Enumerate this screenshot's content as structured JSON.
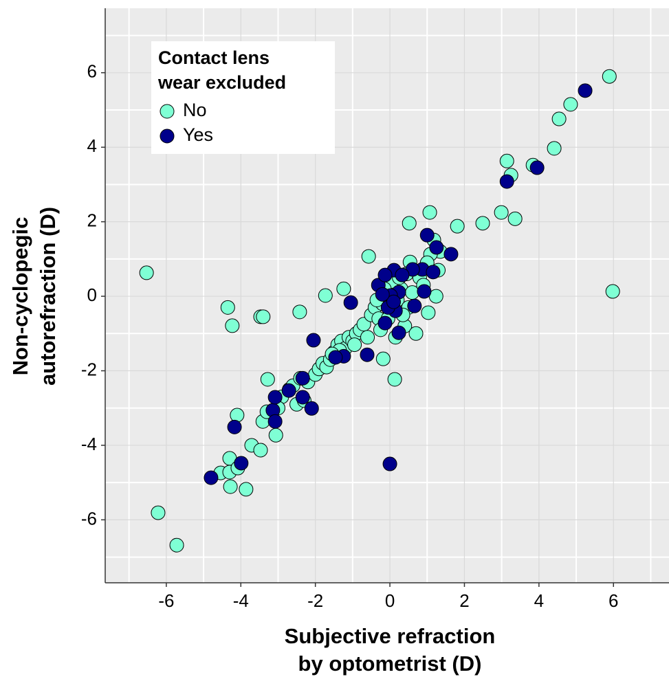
{
  "chart_data": {
    "type": "scatter",
    "x_label": [
      "Subjective refraction",
      "by optometrist (D)"
    ],
    "y_label": [
      "Non-cyclopegic",
      "autorefraction (D)"
    ],
    "legend_title": [
      "Contact lens",
      "wear excluded"
    ],
    "legend_position": "top-left",
    "grid": true,
    "xlim": [
      -7.64,
      7.49
    ],
    "ylim": [
      -7.69,
      7.73
    ],
    "xticks": [
      -6,
      -4,
      -2,
      0,
      2,
      4,
      6
    ],
    "yticks": [
      -6,
      -4,
      -2,
      0,
      2,
      4,
      6
    ],
    "series": [
      {
        "name": "No",
        "color": "#7fffd4",
        "x": [
          5.89,
          4.85,
          4.54,
          4.41,
          3.84,
          3.14,
          3.25,
          2.99,
          3.36,
          2.49,
          1.81,
          1.07,
          0.52,
          5.98,
          -6.53,
          -0.57,
          -4.35,
          -4.23,
          -3.47,
          -3.4,
          -2.42,
          -1.73,
          -1.24,
          0.13,
          -0.18,
          -3.28,
          -4.1,
          -3.41,
          -3.71,
          -3.47,
          -3.06,
          -4.3,
          -4.54,
          -4.3,
          -4.08,
          -4.28,
          -3.86,
          -6.22,
          -5.72,
          1.18,
          1.35,
          1.09,
          1.03,
          1.24,
          0.54,
          -2.9,
          -2.7,
          -2.6,
          -2.4,
          -2.2,
          -2.0,
          -1.9,
          -1.8,
          -1.7,
          -1.6,
          -1.5,
          -1.4,
          -1.3,
          -1.2,
          -1.1,
          -1.0,
          -0.9,
          -0.8,
          -0.7,
          -0.6,
          -0.5,
          -0.4,
          -0.3,
          -0.2,
          -0.1,
          0,
          0.1,
          0.2,
          0.3,
          0.4,
          0.5,
          0.6,
          0.7,
          0.8,
          0.9,
          -0.25,
          -0.05,
          0.15,
          0.35,
          0.05,
          -0.15,
          -0.35,
          0.25,
          0.45,
          1.0,
          1.3,
          -3.3,
          -2.5,
          -2.3,
          -0.95,
          -1.35,
          -1.55,
          -3.0
        ],
        "y": [
          5.9,
          5.15,
          4.76,
          3.97,
          3.52,
          3.63,
          3.25,
          2.25,
          2.08,
          1.96,
          1.88,
          2.25,
          1.96,
          0.13,
          0.63,
          1.07,
          -0.3,
          -0.79,
          -0.55,
          -0.55,
          -0.42,
          0.02,
          0.2,
          -2.23,
          -1.68,
          -2.23,
          -3.19,
          -3.36,
          -4.0,
          -4.13,
          -3.73,
          -4.35,
          -4.74,
          -4.72,
          -4.61,
          -5.11,
          -5.18,
          -5.81,
          -6.68,
          1.51,
          1.2,
          1.13,
          -0.44,
          0,
          0.92,
          -2.7,
          -2.5,
          -2.4,
          -2.2,
          -2.3,
          -2.1,
          -1.95,
          -1.8,
          -1.9,
          -1.7,
          -1.5,
          -1.3,
          -1.2,
          -1.4,
          -1.1,
          -1.2,
          -1.0,
          -0.9,
          -0.75,
          -1.1,
          -0.5,
          -0.3,
          -0.6,
          -0.2,
          0.1,
          -0.4,
          0.3,
          -0.1,
          0.2,
          -0.8,
          -0.3,
          0.1,
          -1.0,
          0.5,
          0.3,
          -0.9,
          -0.6,
          -1.1,
          -0.5,
          0.4,
          0.2,
          -0.1,
          0.5,
          0.6,
          0.9,
          0.7,
          -3.1,
          -2.9,
          -2.8,
          -1.3,
          -1.45,
          -1.55,
          -3.0
        ]
      },
      {
        "name": "Yes",
        "color": "#00008b",
        "x": [
          5.24,
          3.95,
          3.14,
          1.64,
          1.0,
          0.87,
          1.25,
          1.16,
          0.92,
          0.61,
          0.24,
          0.11,
          -1.05,
          -2.05,
          0,
          -4.8,
          -3.99,
          -4.17,
          -3.14,
          -3.08,
          -3.08,
          -2.1,
          -2.34,
          -2.34,
          -2.71,
          -0.61,
          -1.24,
          -1.46,
          0.24,
          -0.13,
          -0.31,
          -0.13,
          0.15,
          0.02,
          0.33,
          0.66,
          -0.05,
          0.1,
          -0.2
        ],
        "y": [
          5.52,
          3.45,
          3.08,
          1.13,
          1.64,
          0.72,
          1.31,
          0.65,
          0.13,
          0.72,
          0.11,
          0.7,
          -0.17,
          -1.18,
          -4.5,
          -4.87,
          -4.48,
          -3.51,
          -3.06,
          -3.36,
          -2.71,
          -3.01,
          -2.2,
          -2.71,
          -2.53,
          -1.57,
          -1.61,
          -1.64,
          -0.98,
          -0.72,
          0.3,
          0.57,
          -0.39,
          0.02,
          0.57,
          -0.26,
          -0.3,
          -0.15,
          0.05
        ]
      }
    ]
  }
}
